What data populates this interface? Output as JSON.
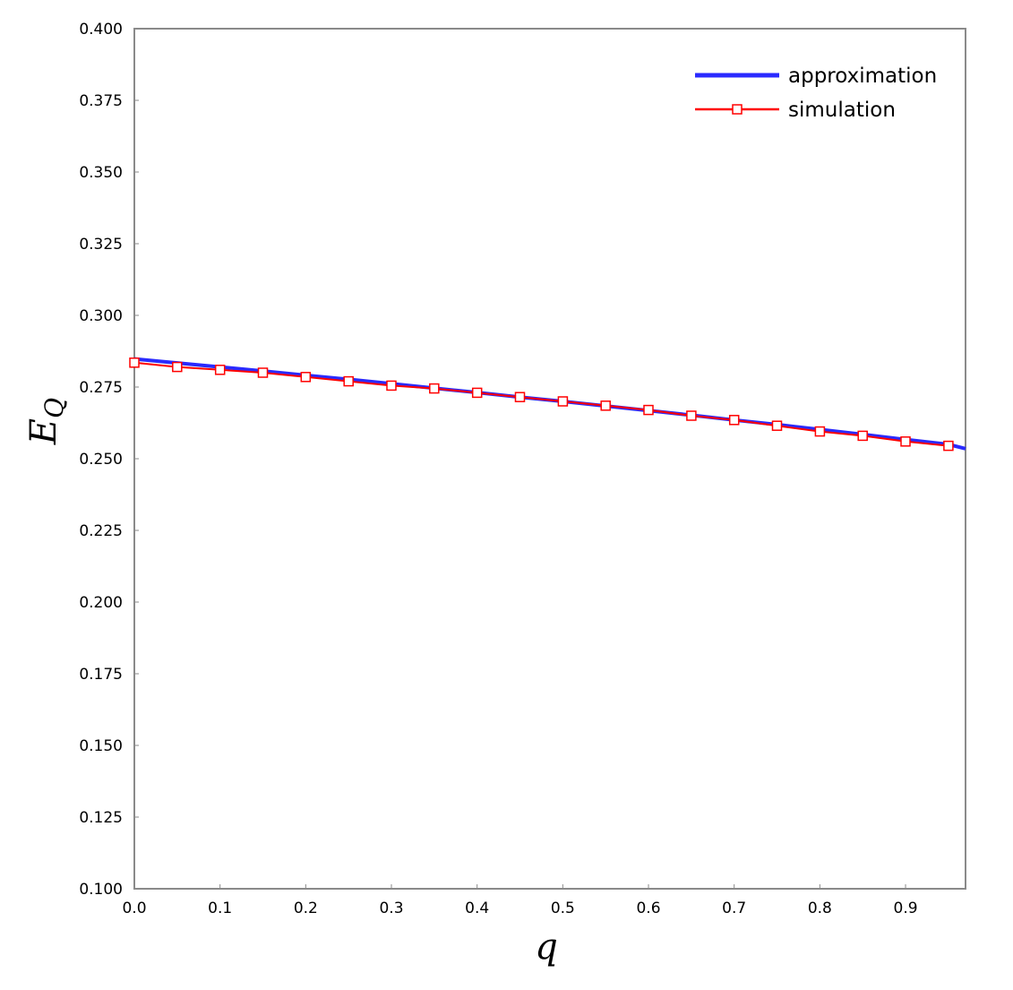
{
  "chart_data": {
    "type": "line",
    "title": "",
    "xlabel": "q",
    "ylabel_main": "E",
    "ylabel_sub": "Q",
    "xlim": [
      0.0,
      0.97
    ],
    "ylim": [
      0.1,
      0.4
    ],
    "xticks": [
      "0.0",
      "0.1",
      "0.2",
      "0.3",
      "0.4",
      "0.5",
      "0.6",
      "0.7",
      "0.8",
      "0.9"
    ],
    "yticks": [
      "0.100",
      "0.125",
      "0.150",
      "0.175",
      "0.200",
      "0.225",
      "0.250",
      "0.275",
      "0.300",
      "0.325",
      "0.350",
      "0.375",
      "0.400"
    ],
    "grid": false,
    "legend_position": "top-right",
    "series": [
      {
        "name": "approximation",
        "color": "#2a2aff",
        "marker": "none",
        "x": [
          0.0,
          0.05,
          0.1,
          0.15,
          0.2,
          0.25,
          0.3,
          0.35,
          0.4,
          0.45,
          0.5,
          0.55,
          0.6,
          0.65,
          0.7,
          0.75,
          0.8,
          0.85,
          0.9,
          0.95,
          0.97
        ],
        "y": [
          0.2848,
          0.2834,
          0.282,
          0.2806,
          0.2791,
          0.2777,
          0.2762,
          0.2746,
          0.2731,
          0.2715,
          0.27,
          0.2684,
          0.2668,
          0.2652,
          0.2635,
          0.2619,
          0.2602,
          0.2585,
          0.2567,
          0.255,
          0.2535
        ]
      },
      {
        "name": "simulation",
        "color": "#ff0000",
        "marker": "square",
        "x": [
          0.0,
          0.05,
          0.1,
          0.15,
          0.2,
          0.25,
          0.3,
          0.35,
          0.4,
          0.45,
          0.5,
          0.55,
          0.6,
          0.65,
          0.7,
          0.75,
          0.8,
          0.85,
          0.9,
          0.95
        ],
        "y": [
          0.2835,
          0.282,
          0.281,
          0.28,
          0.2785,
          0.277,
          0.2755,
          0.2745,
          0.273,
          0.2715,
          0.27,
          0.2685,
          0.267,
          0.265,
          0.2635,
          0.2615,
          0.2595,
          0.258,
          0.256,
          0.2545
        ]
      }
    ]
  }
}
